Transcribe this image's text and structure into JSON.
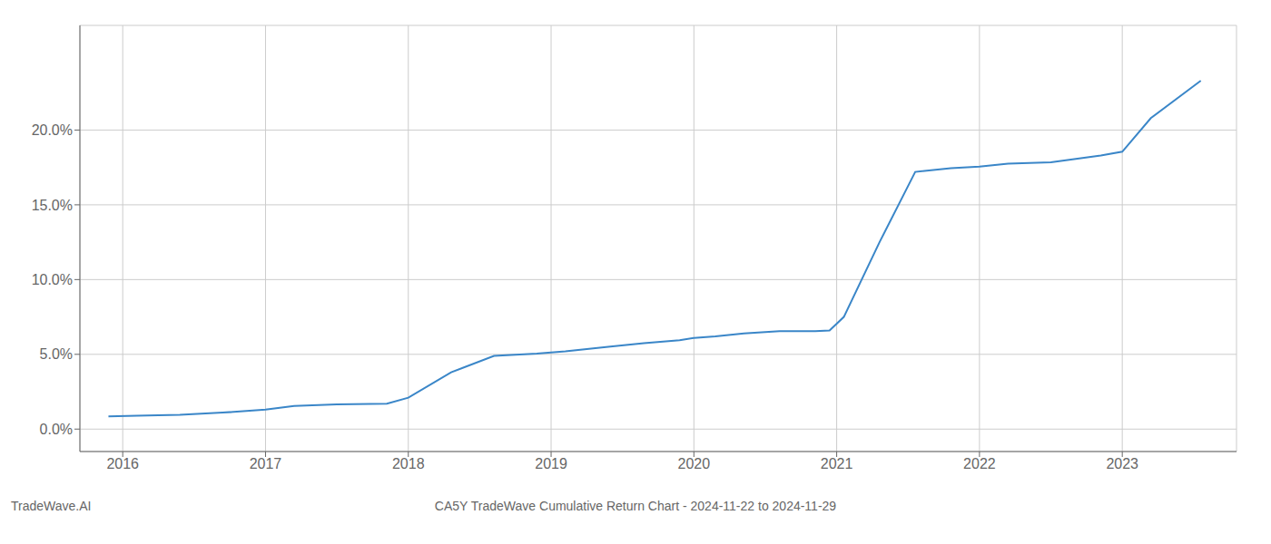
{
  "chart_data": {
    "type": "line",
    "title": "CA5Y TradeWave Cumulative Return Chart - 2024-11-22 to 2024-11-29",
    "annotations": [
      "TradeWave.AI"
    ],
    "x": [
      2015.9,
      2016.1,
      2016.4,
      2016.7,
      2017.0,
      2017.2,
      2017.5,
      2017.85,
      2018.0,
      2018.3,
      2018.6,
      2018.9,
      2019.1,
      2019.4,
      2019.65,
      2019.9,
      2020.0,
      2020.15,
      2020.35,
      2020.6,
      2020.85,
      2020.95,
      2021.05,
      2021.3,
      2021.55,
      2021.8,
      2022.0,
      2022.2,
      2022.5,
      2022.85,
      2023.0,
      2023.2,
      2023.55
    ],
    "values": [
      0.85,
      0.9,
      0.95,
      1.1,
      1.3,
      1.55,
      1.65,
      1.7,
      2.1,
      3.8,
      4.9,
      5.05,
      5.2,
      5.5,
      5.75,
      5.95,
      6.1,
      6.2,
      6.4,
      6.55,
      6.55,
      6.6,
      7.5,
      12.5,
      17.2,
      17.45,
      17.55,
      17.75,
      17.85,
      18.3,
      18.55,
      20.8,
      23.3
    ],
    "color": "#3a86c8",
    "xlim": [
      2015.7,
      2023.8
    ],
    "ylim": [
      -1.5,
      27.0
    ],
    "xticks": [
      2016,
      2017,
      2018,
      2019,
      2020,
      2021,
      2022,
      2023
    ],
    "yticks": [
      {
        "value": 0.0,
        "label": "0.0%"
      },
      {
        "value": 5.0,
        "label": "5.0%"
      },
      {
        "value": 10.0,
        "label": "10.0%"
      },
      {
        "value": 15.0,
        "label": "15.0%"
      },
      {
        "value": 20.0,
        "label": "20.0%"
      }
    ],
    "grid": true
  }
}
